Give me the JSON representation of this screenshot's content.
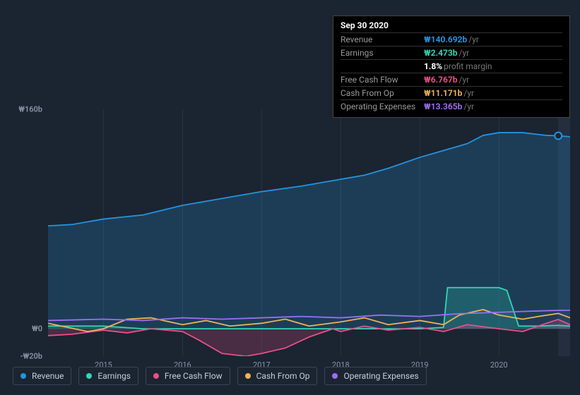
{
  "colors": {
    "background": "#1b2431",
    "grid": "#2a3342",
    "text": "#a8b2c1",
    "text_muted": "#8a94a6",
    "revenue": "#2394df",
    "earnings": "#33d6b6",
    "fcf": "#e84f8a",
    "cfo": "#eeb258",
    "opex": "#9a6ff0"
  },
  "tooltip": {
    "title": "Sep 30 2020",
    "rows": [
      {
        "label": "Revenue",
        "value": "₩140.692b",
        "unit": "/yr",
        "color_key": "revenue"
      },
      {
        "label": "Earnings",
        "value": "₩2.473b",
        "unit": "/yr",
        "color_key": "earnings"
      },
      {
        "label": "",
        "value": "1.8%",
        "unit": "profit margin",
        "color_key": "white"
      },
      {
        "label": "Free Cash Flow",
        "value": "₩6.767b",
        "unit": "/yr",
        "color_key": "fcf"
      },
      {
        "label": "Cash From Op",
        "value": "₩11.171b",
        "unit": "/yr",
        "color_key": "cfo"
      },
      {
        "label": "Operating Expenses",
        "value": "₩13.365b",
        "unit": "/yr",
        "color_key": "opex"
      }
    ]
  },
  "chart": {
    "type": "area-line",
    "ylim": [
      -20,
      160
    ],
    "yticks": [
      {
        "v": 160,
        "label": "₩160b"
      },
      {
        "v": 0,
        "label": "₩0"
      },
      {
        "v": -20,
        "label": "-₩20b"
      }
    ],
    "xlim": [
      2014.3,
      2020.9
    ],
    "xticks": [
      2015,
      2016,
      2017,
      2018,
      2019,
      2020
    ],
    "cursor_x": 2020.75,
    "series": {
      "revenue": {
        "label": "Revenue",
        "fill": true,
        "points": [
          [
            2014.3,
            75
          ],
          [
            2014.6,
            76
          ],
          [
            2015.0,
            80
          ],
          [
            2015.5,
            83
          ],
          [
            2016.0,
            90
          ],
          [
            2016.5,
            95
          ],
          [
            2017.0,
            100
          ],
          [
            2017.5,
            104
          ],
          [
            2018.0,
            109
          ],
          [
            2018.3,
            112
          ],
          [
            2018.6,
            117
          ],
          [
            2019.0,
            125
          ],
          [
            2019.3,
            130
          ],
          [
            2019.6,
            135
          ],
          [
            2019.8,
            141
          ],
          [
            2020.0,
            143
          ],
          [
            2020.3,
            143
          ],
          [
            2020.6,
            141
          ],
          [
            2020.75,
            140.7
          ],
          [
            2020.9,
            140
          ]
        ]
      },
      "earnings": {
        "label": "Earnings",
        "fill": true,
        "points": [
          [
            2014.3,
            2
          ],
          [
            2015.0,
            2
          ],
          [
            2015.5,
            0
          ],
          [
            2016.0,
            0
          ],
          [
            2016.5,
            0
          ],
          [
            2017.0,
            0
          ],
          [
            2017.5,
            0
          ],
          [
            2018.0,
            0
          ],
          [
            2018.5,
            0
          ],
          [
            2019.0,
            0
          ],
          [
            2019.3,
            1
          ],
          [
            2019.35,
            30
          ],
          [
            2019.5,
            30
          ],
          [
            2020.0,
            30
          ],
          [
            2020.1,
            28
          ],
          [
            2020.25,
            2
          ],
          [
            2020.5,
            2
          ],
          [
            2020.75,
            2.5
          ],
          [
            2020.9,
            2
          ]
        ]
      },
      "fcf": {
        "label": "Free Cash Flow",
        "fill": true,
        "points": [
          [
            2014.3,
            -5
          ],
          [
            2014.6,
            -4
          ],
          [
            2015.0,
            -1
          ],
          [
            2015.3,
            -3
          ],
          [
            2015.6,
            0
          ],
          [
            2016.0,
            -2
          ],
          [
            2016.2,
            -8
          ],
          [
            2016.5,
            -18
          ],
          [
            2016.8,
            -20
          ],
          [
            2017.0,
            -18
          ],
          [
            2017.3,
            -14
          ],
          [
            2017.6,
            -6
          ],
          [
            2017.9,
            0
          ],
          [
            2018.0,
            -2
          ],
          [
            2018.3,
            2
          ],
          [
            2018.6,
            -1
          ],
          [
            2019.0,
            1
          ],
          [
            2019.3,
            -2
          ],
          [
            2019.6,
            3
          ],
          [
            2020.0,
            0
          ],
          [
            2020.3,
            -2
          ],
          [
            2020.6,
            4
          ],
          [
            2020.75,
            6.8
          ],
          [
            2020.9,
            3
          ]
        ]
      },
      "cfo": {
        "label": "Cash From Op",
        "fill": false,
        "points": [
          [
            2014.3,
            4
          ],
          [
            2014.8,
            -2
          ],
          [
            2015.0,
            0
          ],
          [
            2015.3,
            7
          ],
          [
            2015.6,
            8
          ],
          [
            2016.0,
            3
          ],
          [
            2016.3,
            6
          ],
          [
            2016.6,
            2
          ],
          [
            2017.0,
            4
          ],
          [
            2017.3,
            7
          ],
          [
            2017.6,
            2
          ],
          [
            2018.0,
            5
          ],
          [
            2018.3,
            8
          ],
          [
            2018.6,
            3
          ],
          [
            2019.0,
            6
          ],
          [
            2019.3,
            3
          ],
          [
            2019.5,
            10
          ],
          [
            2019.8,
            14
          ],
          [
            2020.0,
            10
          ],
          [
            2020.3,
            7
          ],
          [
            2020.5,
            9
          ],
          [
            2020.75,
            11.2
          ],
          [
            2020.9,
            8
          ]
        ]
      },
      "opex": {
        "label": "Operating Expenses",
        "fill": false,
        "points": [
          [
            2014.3,
            6
          ],
          [
            2015.0,
            7
          ],
          [
            2015.5,
            6
          ],
          [
            2016.0,
            8
          ],
          [
            2016.5,
            7
          ],
          [
            2017.0,
            8
          ],
          [
            2017.5,
            9
          ],
          [
            2018.0,
            8
          ],
          [
            2018.5,
            10
          ],
          [
            2019.0,
            9
          ],
          [
            2019.5,
            11
          ],
          [
            2020.0,
            12
          ],
          [
            2020.5,
            13
          ],
          [
            2020.75,
            13.4
          ],
          [
            2020.9,
            13.5
          ]
        ]
      }
    },
    "legend_order": [
      "revenue",
      "earnings",
      "fcf",
      "cfo",
      "opex"
    ]
  }
}
